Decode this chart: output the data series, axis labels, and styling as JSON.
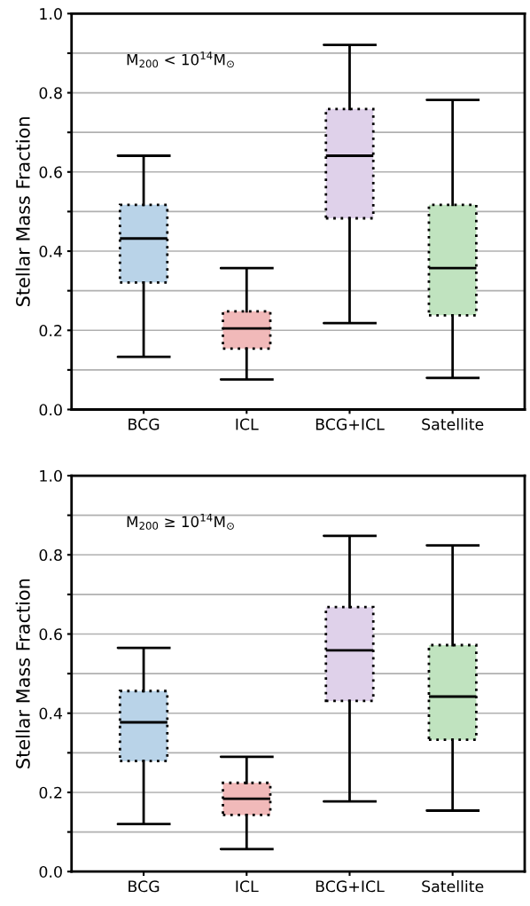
{
  "chart_data": [
    {
      "type": "box",
      "ylabel": "Stellar Mass Fraction",
      "annotations": [
        "M$_{200}$ < 10$^{14}$M$_{⊙}$"
      ],
      "categories": [
        "BCG",
        "ICL",
        "BCG+ICL",
        "Satellite"
      ],
      "colors": [
        "#b9d3e8",
        "#f1b9b9",
        "#dfd1ea",
        "#c0e3bf"
      ],
      "boxes": [
        {
          "low": 0.133,
          "q1": 0.321,
          "median": 0.432,
          "q3": 0.517,
          "high": 0.641
        },
        {
          "low": 0.076,
          "q1": 0.154,
          "median": 0.205,
          "q3": 0.248,
          "high": 0.357
        },
        {
          "low": 0.218,
          "q1": 0.483,
          "median": 0.641,
          "q3": 0.759,
          "high": 0.921
        },
        {
          "low": 0.08,
          "q1": 0.238,
          "median": 0.357,
          "q3": 0.517,
          "high": 0.782
        }
      ],
      "ylim": [
        0,
        1.0
      ],
      "yticks": [
        {
          "value": 0,
          "label": "0.0"
        },
        {
          "value": 0.1,
          "label": null
        },
        0.2,
        {
          "value": 0.3,
          "label": null
        },
        0.4,
        {
          "value": 0.5,
          "label": null
        },
        0.6,
        {
          "value": 0.7,
          "label": null
        },
        0.8,
        {
          "value": 0.9,
          "label": null
        },
        {
          "value": 1,
          "label": "1.0"
        }
      ],
      "grid": "y"
    },
    {
      "type": "box",
      "ylabel": "Stellar Mass Fraction",
      "annotations": [
        "M$_{200}$ ≥ 10$^{14}$M$_{⊙}$"
      ],
      "categories": [
        "BCG",
        "ICL",
        "BCG+ICL",
        "Satellite"
      ],
      "colors": [
        "#b9d3e8",
        "#f1b9b9",
        "#dfd1ea",
        "#c0e3bf"
      ],
      "boxes": [
        {
          "low": 0.12,
          "q1": 0.279,
          "median": 0.377,
          "q3": 0.456,
          "high": 0.565
        },
        {
          "low": 0.057,
          "q1": 0.143,
          "median": 0.184,
          "q3": 0.224,
          "high": 0.29
        },
        {
          "low": 0.177,
          "q1": 0.431,
          "median": 0.559,
          "q3": 0.668,
          "high": 0.848
        },
        {
          "low": 0.154,
          "q1": 0.333,
          "median": 0.442,
          "q3": 0.572,
          "high": 0.824
        }
      ],
      "ylim": [
        0,
        1.0
      ],
      "yticks": [
        {
          "value": 0,
          "label": "0.0"
        },
        {
          "value": 0.1,
          "label": null
        },
        0.2,
        {
          "value": 0.3,
          "label": null
        },
        0.4,
        {
          "value": 0.5,
          "label": null
        },
        0.6,
        {
          "value": 0.7,
          "label": null
        },
        0.8,
        {
          "value": 0.9,
          "label": null
        },
        {
          "value": 1,
          "label": "1.0"
        }
      ],
      "grid": "y"
    }
  ]
}
